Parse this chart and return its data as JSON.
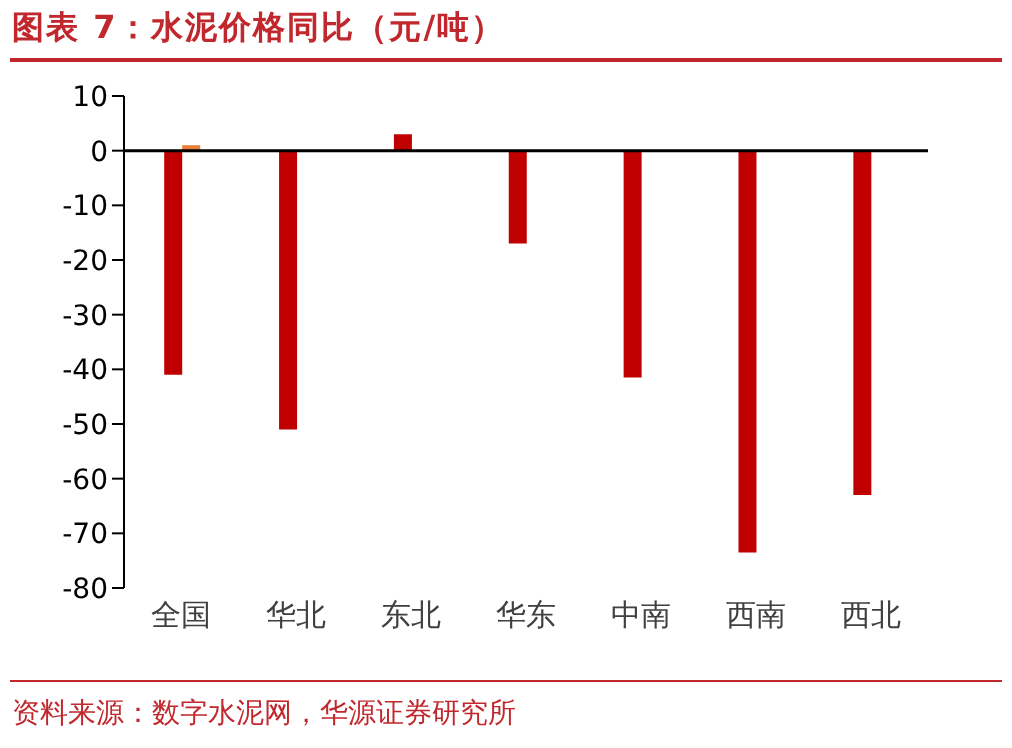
{
  "chart_data": {
    "type": "bar",
    "title": "图表 7：水泥价格同比（元/吨）",
    "categories": [
      "全国",
      "华北",
      "东北",
      "华东",
      "中南",
      "西南",
      "西北"
    ],
    "series": [
      {
        "color": "#c00000",
        "values": [
          -41,
          -51,
          3,
          -17,
          -41.5,
          -73.5,
          -63
        ]
      },
      {
        "color": "#e8803a",
        "values": [
          1,
          null,
          null,
          null,
          null,
          null,
          null
        ]
      }
    ],
    "ylim": [
      -80,
      10
    ],
    "yticks": [
      -80,
      -70,
      -60,
      -50,
      -40,
      -30,
      -20,
      -10,
      0,
      10
    ],
    "legend": false,
    "annotations": [
      "资料来源：数字水泥网，华源证券研究所"
    ]
  }
}
